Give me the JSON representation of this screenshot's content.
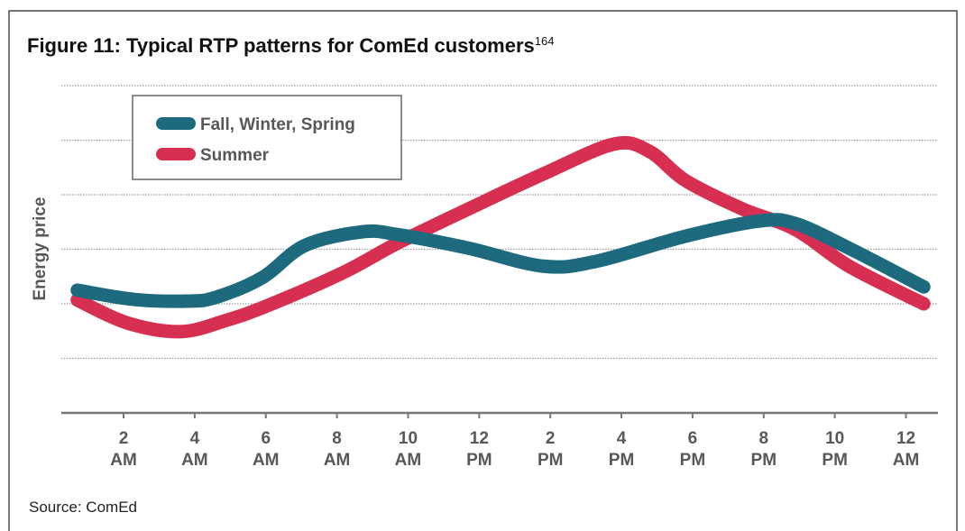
{
  "chart_data": {
    "type": "line",
    "title": "Figure 11: Typical RTP patterns for ComEd customers",
    "title_footnote": "164",
    "ylabel": "Energy price",
    "source": "Source: ComEd",
    "xlim": [
      0.25,
      24.9
    ],
    "xticks": [
      {
        "value": 2,
        "label": "2 AM"
      },
      {
        "value": 4,
        "label": "4 AM"
      },
      {
        "value": 6,
        "label": "6 AM"
      },
      {
        "value": 8,
        "label": "8 AM"
      },
      {
        "value": 10,
        "label": "10 AM"
      },
      {
        "value": 12,
        "label": "12 PM"
      },
      {
        "value": 14,
        "label": "2 PM"
      },
      {
        "value": 16,
        "label": "4 PM"
      },
      {
        "value": 18,
        "label": "6 PM"
      },
      {
        "value": 20,
        "label": "8 PM"
      },
      {
        "value": 22,
        "label": "10 PM"
      },
      {
        "value": 24,
        "label": "12 AM"
      }
    ],
    "ylim": [
      0,
      6.2
    ],
    "yticks": [
      1,
      2,
      3,
      4,
      5,
      6
    ],
    "grid": true,
    "legend": "upper-left",
    "series": [
      {
        "name": "Fall, Winter, Spring",
        "color": "#1d6a7e",
        "x": [
          0.7,
          2.3,
          3.8,
          4.6,
          5.9,
          7.1,
          8.7,
          9.7,
          11.7,
          13.8,
          15.3,
          17.8,
          19.9,
          20.9,
          22.4,
          24.5
        ],
        "values": [
          2.25,
          2.08,
          2.05,
          2.12,
          2.48,
          3.07,
          3.32,
          3.27,
          3.02,
          2.69,
          2.78,
          3.24,
          3.52,
          3.47,
          3.02,
          2.31
        ]
      },
      {
        "name": "Summer",
        "color": "#d72f51",
        "x": [
          0.7,
          2.1,
          3.6,
          4.9,
          6.1,
          8.2,
          9.7,
          11.7,
          13.8,
          15.8,
          16.8,
          17.8,
          19.4,
          20.9,
          22.4,
          24.5
        ],
        "values": [
          2.07,
          1.65,
          1.49,
          1.7,
          1.98,
          2.58,
          3.11,
          3.74,
          4.38,
          4.93,
          4.79,
          4.26,
          3.74,
          3.36,
          2.69,
          2.0
        ]
      }
    ]
  }
}
